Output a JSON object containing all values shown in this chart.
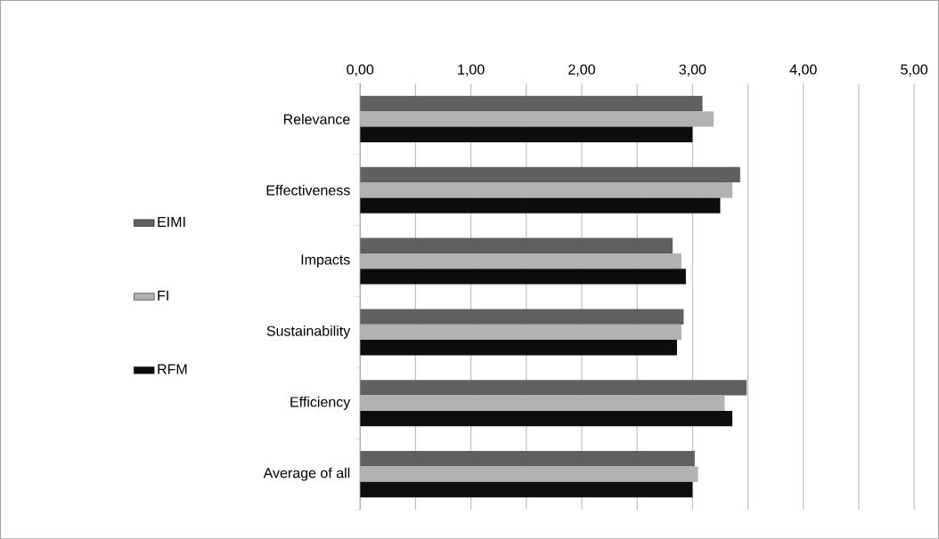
{
  "chart_data": {
    "type": "bar",
    "orientation": "horizontal",
    "categories": [
      "Relevance",
      "Effectiveness",
      "Impacts",
      "Sustainability",
      "Efficiency",
      "Average of all"
    ],
    "series": [
      {
        "name": "EIMI",
        "color": "#606060",
        "values": [
          3.09,
          3.43,
          2.82,
          2.92,
          3.49,
          3.02
        ]
      },
      {
        "name": "FI",
        "color": "#b2b2b2",
        "values": [
          3.19,
          3.36,
          2.9,
          2.9,
          3.29,
          3.05
        ]
      },
      {
        "name": "RFM",
        "color": "#0d0d0d",
        "values": [
          3.0,
          3.25,
          2.94,
          2.86,
          3.36,
          3.0
        ]
      }
    ],
    "xlim": [
      0,
      5
    ],
    "xticks": [
      {
        "value": 0,
        "label": "0,00"
      },
      {
        "value": 0.5,
        "label": null
      },
      {
        "value": 1,
        "label": "1,00"
      },
      {
        "value": 1.5,
        "label": null
      },
      {
        "value": 2,
        "label": "2,00"
      },
      {
        "value": 2.5,
        "label": null
      },
      {
        "value": 3,
        "label": "3,00"
      },
      {
        "value": 3.5,
        "label": null
      },
      {
        "value": 4,
        "label": "4,00"
      },
      {
        "value": 4.5,
        "label": null
      },
      {
        "value": 5,
        "label": "5,00"
      }
    ],
    "grid": "x",
    "legend": "left"
  }
}
